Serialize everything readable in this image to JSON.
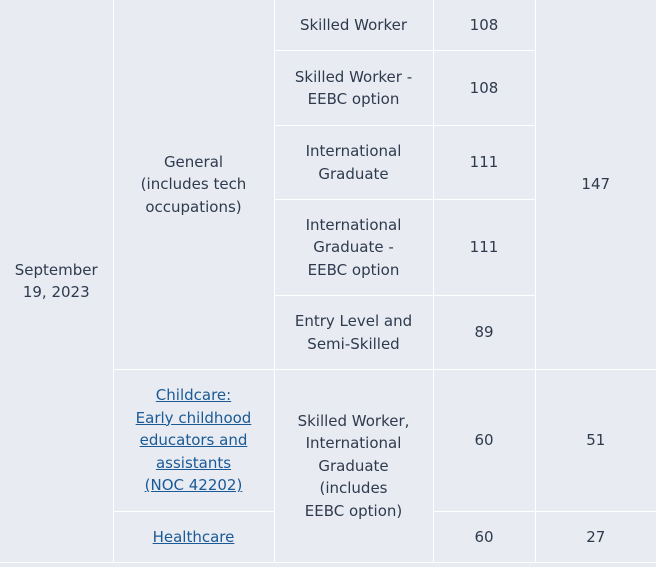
{
  "table": {
    "date": "September 19, 2023",
    "general": {
      "category": "General (includes tech occupations)",
      "score": "147",
      "streams": [
        {
          "name": "Skilled Worker",
          "min_score": "108"
        },
        {
          "name": "Skilled Worker - EEBC option",
          "min_score": "108"
        },
        {
          "name": "International Graduate",
          "min_score": "111"
        },
        {
          "name": "International Graduate - EEBC option",
          "min_score": "111"
        },
        {
          "name": "Entry Level and Semi-Skilled",
          "min_score": "89"
        }
      ]
    },
    "childcare": {
      "category": "Childcare: Early childhood educators and assistants (NOC 42202)",
      "stream": "Skilled Worker, International Graduate (includes EEBC option)",
      "min_score": "60",
      "score": "51"
    },
    "healthcare": {
      "category": "Healthcare",
      "min_score": "60",
      "score": "27"
    }
  }
}
